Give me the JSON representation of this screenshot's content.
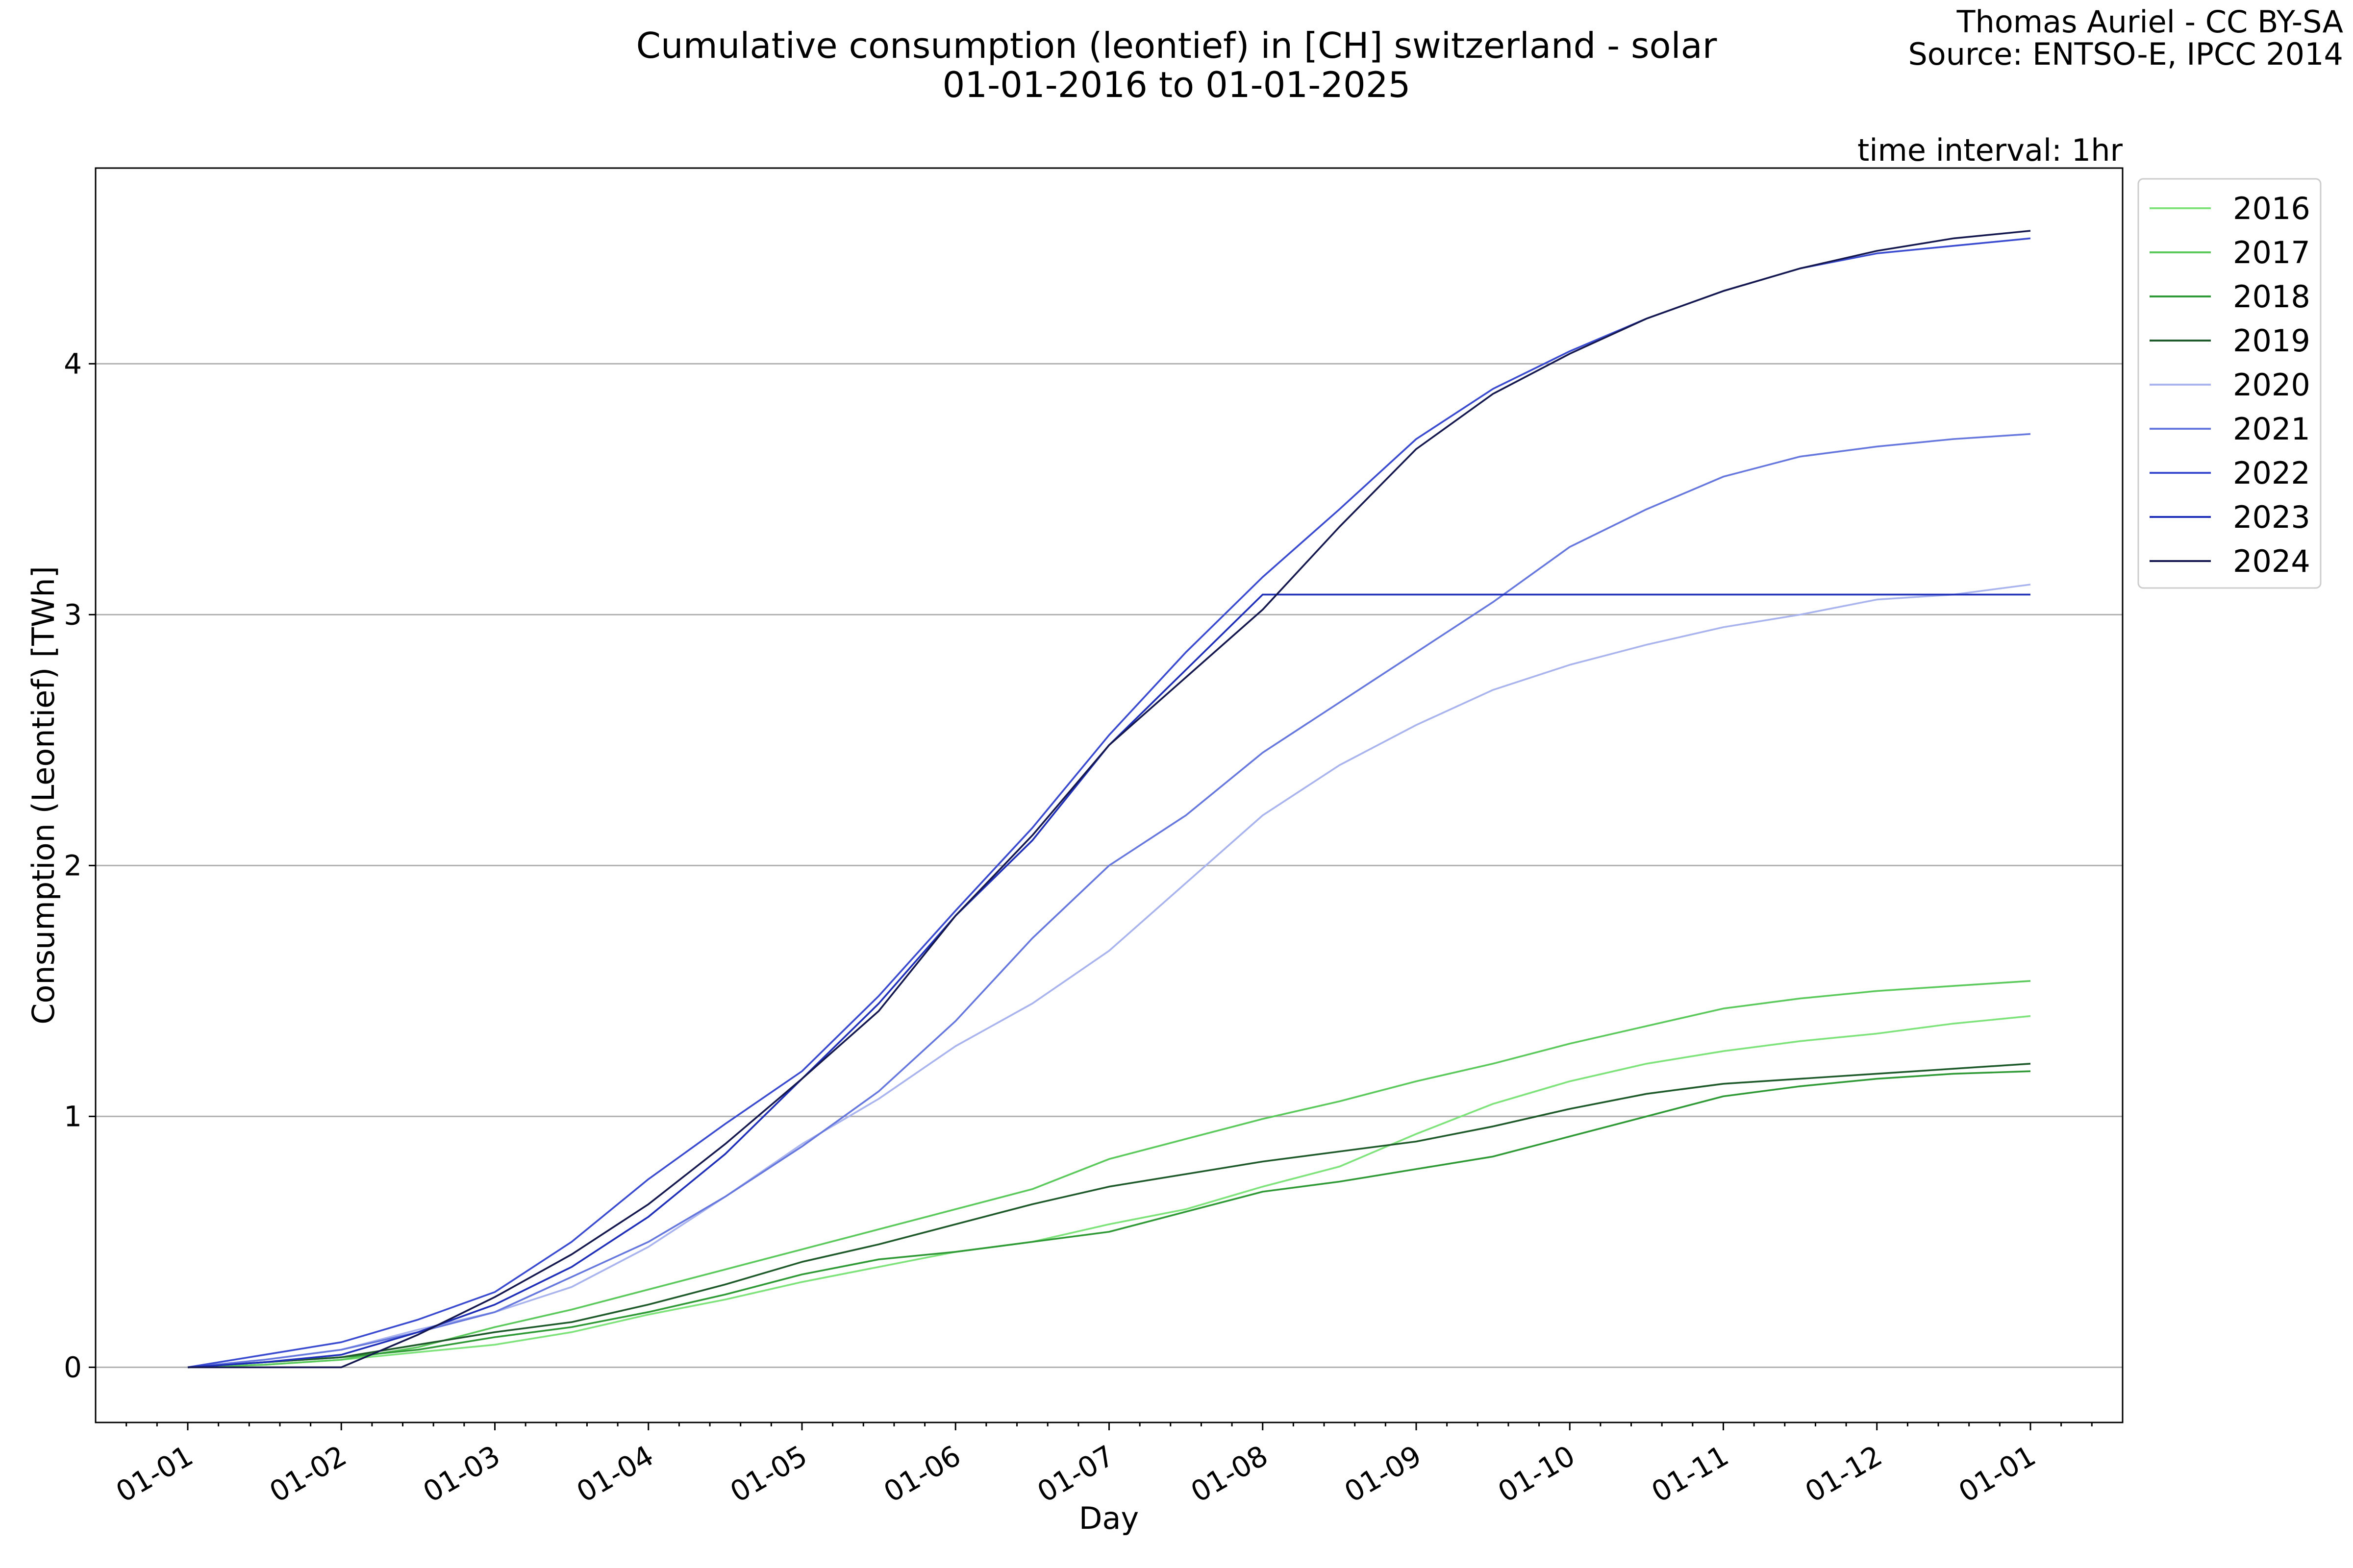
{
  "header": {
    "title_line1": "Cumulative consumption (leontief) in [CH] switzerland - solar",
    "title_line2": "01-01-2016 to 01-01-2025",
    "credit_line1": "Thomas Auriel - CC BY-SA",
    "credit_line2": "Source: ENTSO-E, IPCC 2014",
    "interval": "time interval: 1hr"
  },
  "chart_data": {
    "type": "line",
    "title": "Cumulative consumption (leontief) in [CH] switzerland - solar",
    "subtitle": "01-01-2016 to 01-01-2025",
    "xlabel": "Day",
    "ylabel": "Consumption (Leontief) [TWh]",
    "x_ticks": [
      "01-01",
      "01-02",
      "01-03",
      "01-04",
      "01-05",
      "01-06",
      "01-07",
      "01-08",
      "01-09",
      "01-10",
      "01-11",
      "01-12",
      "01-01"
    ],
    "y_ticks": [
      0,
      1,
      2,
      3,
      4
    ],
    "ylim": [
      -0.22,
      4.78
    ],
    "grid": "horizontal",
    "legend_position": "top-right, outside",
    "x": [
      "01-01",
      "01-15",
      "02-01",
      "02-15",
      "03-01",
      "03-15",
      "04-01",
      "04-15",
      "05-01",
      "05-15",
      "06-01",
      "06-15",
      "07-01",
      "07-15",
      "08-01",
      "08-15",
      "09-01",
      "09-15",
      "10-01",
      "10-15",
      "11-01",
      "11-15",
      "12-01",
      "12-15",
      "12-31"
    ],
    "series": [
      {
        "name": "2016",
        "color": "#7ee37a",
        "values": [
          0,
          0.01,
          0.03,
          0.06,
          0.09,
          0.14,
          0.21,
          0.27,
          0.34,
          0.4,
          0.46,
          0.5,
          0.57,
          0.63,
          0.72,
          0.8,
          0.93,
          1.05,
          1.14,
          1.21,
          1.26,
          1.3,
          1.33,
          1.37,
          1.4
        ]
      },
      {
        "name": "2017",
        "color": "#5cc95c",
        "values": [
          0,
          0.01,
          0.03,
          0.08,
          0.16,
          0.23,
          0.31,
          0.39,
          0.47,
          0.55,
          0.63,
          0.71,
          0.83,
          0.91,
          0.99,
          1.06,
          1.14,
          1.21,
          1.29,
          1.36,
          1.43,
          1.47,
          1.5,
          1.52,
          1.54
        ]
      },
      {
        "name": "2018",
        "color": "#2f9a36",
        "values": [
          0,
          0.02,
          0.04,
          0.07,
          0.12,
          0.16,
          0.22,
          0.29,
          0.37,
          0.43,
          0.46,
          0.5,
          0.54,
          0.62,
          0.7,
          0.74,
          0.79,
          0.84,
          0.92,
          1.0,
          1.08,
          1.12,
          1.15,
          1.17,
          1.18
        ]
      },
      {
        "name": "2019",
        "color": "#1f5a2b",
        "values": [
          0,
          0.02,
          0.04,
          0.09,
          0.14,
          0.18,
          0.25,
          0.33,
          0.42,
          0.49,
          0.57,
          0.65,
          0.72,
          0.77,
          0.82,
          0.86,
          0.9,
          0.96,
          1.03,
          1.09,
          1.13,
          1.15,
          1.17,
          1.19,
          1.21
        ]
      },
      {
        "name": "2020",
        "color": "#a9b4ee",
        "values": [
          0,
          0.03,
          0.07,
          0.15,
          0.22,
          0.32,
          0.48,
          0.68,
          0.89,
          1.07,
          1.28,
          1.45,
          1.66,
          1.93,
          2.2,
          2.4,
          2.56,
          2.7,
          2.8,
          2.88,
          2.95,
          3.0,
          3.06,
          3.08,
          3.12
        ]
      },
      {
        "name": "2021",
        "color": "#6677dd",
        "values": [
          0,
          0.03,
          0.07,
          0.14,
          0.22,
          0.36,
          0.5,
          0.68,
          0.88,
          1.1,
          1.38,
          1.71,
          2.0,
          2.2,
          2.45,
          2.65,
          2.85,
          3.05,
          3.27,
          3.42,
          3.55,
          3.63,
          3.67,
          3.7,
          3.72
        ]
      },
      {
        "name": "2022",
        "color": "#3a4bd0",
        "values": [
          0,
          0.05,
          0.1,
          0.19,
          0.3,
          0.5,
          0.75,
          0.97,
          1.18,
          1.48,
          1.82,
          2.15,
          2.52,
          2.85,
          3.15,
          3.42,
          3.7,
          3.9,
          4.05,
          4.18,
          4.29,
          4.38,
          4.44,
          4.47,
          4.5
        ]
      },
      {
        "name": "2023",
        "color": "#1f2fb8",
        "values": [
          0,
          0.02,
          0.05,
          0.14,
          0.25,
          0.4,
          0.6,
          0.85,
          1.15,
          1.45,
          1.8,
          2.1,
          2.48,
          2.78,
          3.08,
          3.08,
          3.08,
          3.08,
          3.08,
          3.08,
          3.08,
          3.08,
          3.08,
          3.08,
          3.08
        ]
      },
      {
        "name": "2024",
        "color": "#14184e",
        "values": [
          0,
          0.0,
          0.0,
          0.13,
          0.28,
          0.45,
          0.65,
          0.89,
          1.15,
          1.42,
          1.8,
          2.12,
          2.48,
          2.75,
          3.02,
          3.35,
          3.66,
          3.88,
          4.04,
          4.18,
          4.29,
          4.38,
          4.45,
          4.5,
          4.53
        ]
      }
    ]
  }
}
